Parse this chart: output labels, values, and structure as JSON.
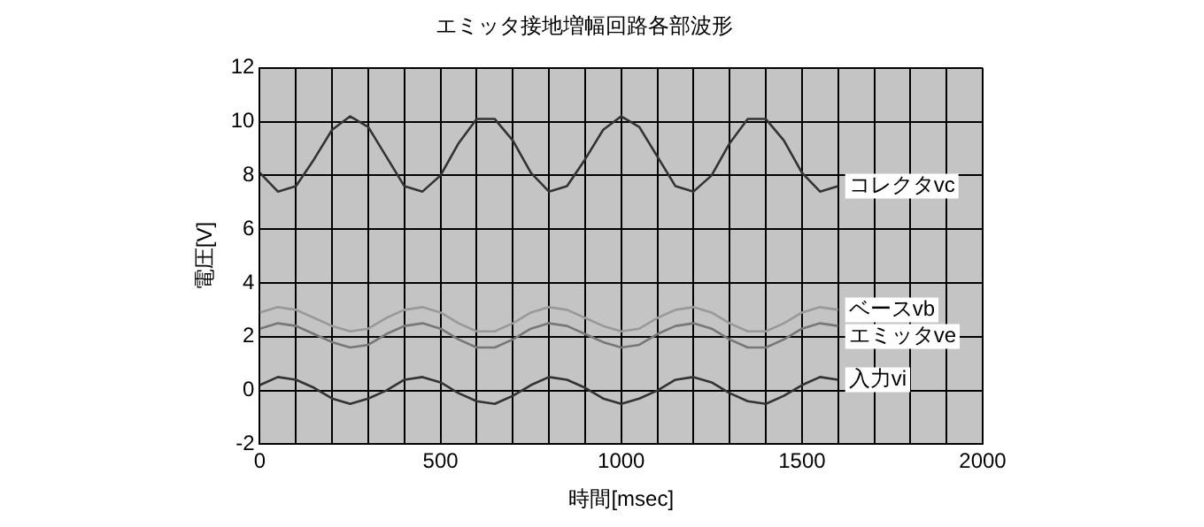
{
  "chart_data": {
    "type": "line",
    "title": "エミッタ接地増幅回路各部波形",
    "xlabel": "時間[msec]",
    "ylabel": "電圧[V]",
    "x": [
      0,
      50,
      100,
      150,
      200,
      250,
      300,
      350,
      400,
      450,
      500,
      550,
      600,
      650,
      700,
      750,
      800,
      850,
      900,
      950,
      1000,
      1050,
      1100,
      1150,
      1200,
      1250,
      1300,
      1350,
      1400,
      1450,
      1500,
      1550,
      1600
    ],
    "series": [
      {
        "name": "コレクタvc",
        "color": "#333333",
        "values": [
          8.1,
          7.4,
          7.6,
          8.6,
          9.7,
          10.2,
          9.8,
          8.7,
          7.6,
          7.4,
          8.0,
          9.2,
          10.1,
          10.1,
          9.3,
          8.1,
          7.4,
          7.6,
          8.6,
          9.7,
          10.2,
          9.8,
          8.7,
          7.6,
          7.4,
          8.0,
          9.2,
          10.1,
          10.1,
          9.3,
          8.1,
          7.4,
          7.6
        ]
      },
      {
        "name": "ベースvb",
        "color": "#999999",
        "values": [
          2.9,
          3.1,
          3.0,
          2.7,
          2.4,
          2.2,
          2.3,
          2.7,
          3.0,
          3.1,
          2.9,
          2.5,
          2.2,
          2.2,
          2.5,
          2.9,
          3.1,
          3.0,
          2.7,
          2.4,
          2.2,
          2.3,
          2.7,
          3.0,
          3.1,
          2.9,
          2.5,
          2.2,
          2.2,
          2.5,
          2.9,
          3.1,
          3.0
        ]
      },
      {
        "name": "エミッタve",
        "color": "#777777",
        "values": [
          2.3,
          2.5,
          2.4,
          2.1,
          1.8,
          1.6,
          1.7,
          2.1,
          2.4,
          2.5,
          2.3,
          1.9,
          1.6,
          1.6,
          1.9,
          2.3,
          2.5,
          2.4,
          2.1,
          1.8,
          1.6,
          1.7,
          2.1,
          2.4,
          2.5,
          2.3,
          1.9,
          1.6,
          1.6,
          1.9,
          2.3,
          2.5,
          2.4
        ]
      },
      {
        "name": "入力vi",
        "color": "#333333",
        "values": [
          0.2,
          0.5,
          0.4,
          0.1,
          -0.3,
          -0.5,
          -0.3,
          0.0,
          0.4,
          0.5,
          0.3,
          -0.1,
          -0.4,
          -0.5,
          -0.2,
          0.2,
          0.5,
          0.4,
          0.1,
          -0.3,
          -0.5,
          -0.3,
          0.0,
          0.4,
          0.5,
          0.3,
          -0.1,
          -0.4,
          -0.5,
          -0.2,
          0.2,
          0.5,
          0.4
        ]
      }
    ],
    "xlim": [
      0,
      2000
    ],
    "xticks": [
      0,
      {
        "value": 100,
        "label": null
      },
      {
        "value": 200,
        "label": null
      },
      {
        "value": 300,
        "label": null
      },
      {
        "value": 400,
        "label": null
      },
      500,
      {
        "value": 600,
        "label": null
      },
      {
        "value": 700,
        "label": null
      },
      {
        "value": 800,
        "label": null
      },
      {
        "value": 900,
        "label": null
      },
      1000,
      {
        "value": 1100,
        "label": null
      },
      {
        "value": 1200,
        "label": null
      },
      {
        "value": 1300,
        "label": null
      },
      {
        "value": 1400,
        "label": null
      },
      1500,
      {
        "value": 1600,
        "label": null
      },
      {
        "value": 1700,
        "label": null
      },
      {
        "value": 1800,
        "label": null
      },
      {
        "value": 1900,
        "label": null
      },
      2000
    ],
    "ylim": [
      -2,
      12
    ],
    "yticks": [
      -2,
      0,
      2,
      4,
      6,
      8,
      10,
      12
    ],
    "grid": true,
    "legend": false,
    "marker": "none",
    "line_style": "solid"
  }
}
